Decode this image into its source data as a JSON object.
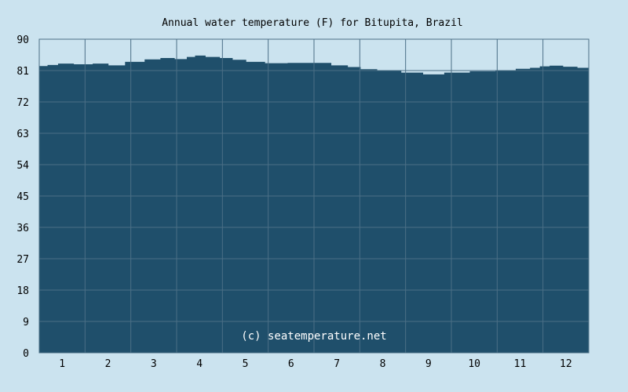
{
  "chart_data": {
    "type": "area",
    "title": "Annual water temperature (F) for Bitupita, Brazil",
    "watermark": "(c) seatemperature.net",
    "xlabel": "",
    "ylabel": "",
    "x_tick_labels": [
      "1",
      "2",
      "3",
      "4",
      "5",
      "6",
      "7",
      "8",
      "9",
      "10",
      "11",
      "12"
    ],
    "y_ticks": [
      0,
      9,
      18,
      27,
      36,
      45,
      54,
      63,
      72,
      81,
      90
    ],
    "ylim": [
      0,
      90
    ],
    "xlim_days": [
      0,
      365
    ],
    "grid": true,
    "colors": {
      "background": "#cbe3ef",
      "fill": "#1f4f6b",
      "grid": "#4b6f86",
      "watermark": "#ffffff"
    },
    "series": [
      {
        "x_day": [
          3,
          8,
          17,
          29,
          42,
          50,
          64,
          76,
          85,
          95,
          101,
          106,
          115,
          125,
          132,
          143,
          157,
          173,
          188,
          200,
          210,
          217,
          232,
          249,
          261,
          277,
          295,
          311,
          322,
          330,
          335,
          343,
          353,
          362
        ],
        "values": [
          82.3,
          82.6,
          83.0,
          82.8,
          83.0,
          82.5,
          83.5,
          84.2,
          84.6,
          84.3,
          84.9,
          85.3,
          84.9,
          84.6,
          84.1,
          83.5,
          83.1,
          83.2,
          83.2,
          82.5,
          82.0,
          81.4,
          80.9,
          80.4,
          79.9,
          80.4,
          80.8,
          80.9,
          81.5,
          81.8,
          82.2,
          82.4,
          82.1,
          81.8
        ]
      }
    ]
  }
}
